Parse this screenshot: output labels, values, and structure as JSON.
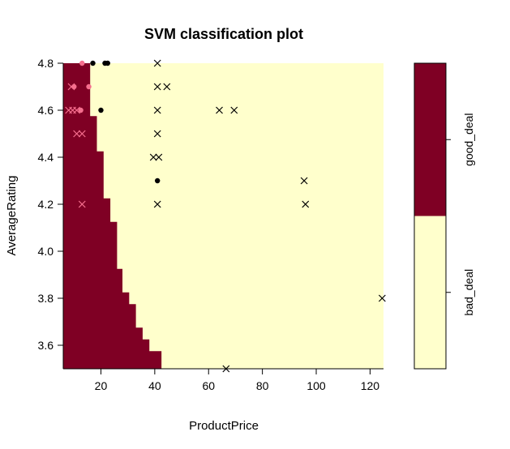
{
  "chart_data": {
    "type": "scatter",
    "title": "SVM classification plot",
    "xlabel": "ProductPrice",
    "ylabel": "AverageRating",
    "xlim": [
      6,
      125
    ],
    "ylim": [
      3.5,
      4.8
    ],
    "x_ticks": [
      "20",
      "40",
      "60",
      "80",
      "100",
      "120"
    ],
    "y_ticks": [
      "3.6",
      "3.8",
      "4.0",
      "4.2",
      "4.4",
      "4.6",
      "4.8"
    ],
    "grid": false,
    "colors": {
      "good_deal_region": "#7F0024",
      "bad_deal_region": "#FFFFCC",
      "good_deal_points": "#F56F8E",
      "bad_deal_points": "#000000"
    },
    "legend": {
      "placement": "right",
      "type": "color-key",
      "levels": [
        "bad_deal",
        "good_deal"
      ]
    },
    "decision_boundary": [
      {
        "y": 3.5,
        "x": 42.5
      },
      {
        "y": 3.55,
        "x": 42.5
      },
      {
        "y": 3.6,
        "x": 38
      },
      {
        "y": 3.65,
        "x": 35.5
      },
      {
        "y": 3.7,
        "x": 33
      },
      {
        "y": 3.75,
        "x": 33
      },
      {
        "y": 3.8,
        "x": 30.5
      },
      {
        "y": 3.85,
        "x": 28
      },
      {
        "y": 3.9,
        "x": 28
      },
      {
        "y": 3.95,
        "x": 26
      },
      {
        "y": 4.0,
        "x": 26
      },
      {
        "y": 4.05,
        "x": 26
      },
      {
        "y": 4.1,
        "x": 26
      },
      {
        "y": 4.15,
        "x": 23.5
      },
      {
        "y": 4.2,
        "x": 23.5
      },
      {
        "y": 4.25,
        "x": 21
      },
      {
        "y": 4.3,
        "x": 21
      },
      {
        "y": 4.35,
        "x": 21
      },
      {
        "y": 4.4,
        "x": 21
      },
      {
        "y": 4.45,
        "x": 18.5
      },
      {
        "y": 4.5,
        "x": 18.5
      },
      {
        "y": 4.55,
        "x": 18.5
      },
      {
        "y": 4.6,
        "x": 16
      },
      {
        "y": 4.65,
        "x": 16
      },
      {
        "y": 4.7,
        "x": 16
      },
      {
        "y": 4.75,
        "x": 16
      },
      {
        "y": 4.8,
        "x": 16
      }
    ],
    "series": [
      {
        "name": "good_deal",
        "points": [
          {
            "x": 13,
            "y": 4.8,
            "sv": false
          },
          {
            "x": 9,
            "y": 4.7,
            "sv": true
          },
          {
            "x": 10,
            "y": 4.7,
            "sv": false
          },
          {
            "x": 15.5,
            "y": 4.7,
            "sv": false
          },
          {
            "x": 8,
            "y": 4.6,
            "sv": true
          },
          {
            "x": 9.5,
            "y": 4.6,
            "sv": true
          },
          {
            "x": 11,
            "y": 4.6,
            "sv": true
          },
          {
            "x": 12.5,
            "y": 4.6,
            "sv": false
          },
          {
            "x": 11,
            "y": 4.5,
            "sv": true
          },
          {
            "x": 13,
            "y": 4.5,
            "sv": true
          },
          {
            "x": 13,
            "y": 4.2,
            "sv": true
          }
        ]
      },
      {
        "name": "bad_deal",
        "points": [
          {
            "x": 17,
            "y": 4.8,
            "sv": false
          },
          {
            "x": 21.5,
            "y": 4.8,
            "sv": false
          },
          {
            "x": 22.5,
            "y": 4.8,
            "sv": false
          },
          {
            "x": 41,
            "y": 4.8,
            "sv": true
          },
          {
            "x": 41,
            "y": 4.7,
            "sv": true
          },
          {
            "x": 44.5,
            "y": 4.7,
            "sv": true
          },
          {
            "x": 20,
            "y": 4.6,
            "sv": false
          },
          {
            "x": 41,
            "y": 4.6,
            "sv": true
          },
          {
            "x": 64,
            "y": 4.6,
            "sv": true
          },
          {
            "x": 69.5,
            "y": 4.6,
            "sv": true
          },
          {
            "x": 41,
            "y": 4.5,
            "sv": true
          },
          {
            "x": 39.5,
            "y": 4.4,
            "sv": true
          },
          {
            "x": 41.5,
            "y": 4.4,
            "sv": true
          },
          {
            "x": 41,
            "y": 4.3,
            "sv": false
          },
          {
            "x": 95.5,
            "y": 4.3,
            "sv": true
          },
          {
            "x": 41,
            "y": 4.2,
            "sv": true
          },
          {
            "x": 96,
            "y": 4.2,
            "sv": true
          },
          {
            "x": 124.5,
            "y": 3.8,
            "sv": true
          },
          {
            "x": 66.5,
            "y": 3.5,
            "sv": true
          }
        ]
      }
    ]
  }
}
